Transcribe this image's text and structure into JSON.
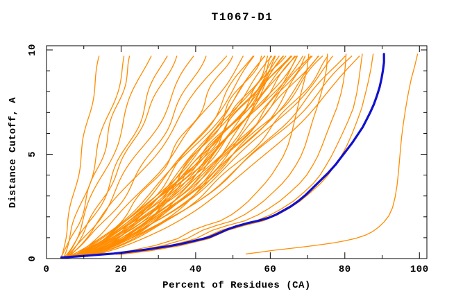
{
  "page": {
    "background": "#ffffff"
  },
  "chart_data": {
    "type": "line",
    "title": "T1067-D1",
    "xlabel": "Percent of Residues (CA)",
    "ylabel": "Distance Cutoff, A",
    "xlim": [
      0,
      102
    ],
    "ylim": [
      0,
      10.2
    ],
    "x_major_ticks": [
      0,
      20,
      40,
      60,
      80,
      100
    ],
    "x_minor_ticks": [
      10,
      30,
      50,
      70,
      90
    ],
    "y_major_ticks": [
      0,
      5,
      10
    ],
    "y_minor_ticks": [
      1,
      2,
      3,
      4,
      6,
      7,
      8,
      9
    ],
    "x_tick_labels": [
      "0",
      "20",
      "40",
      "60",
      "80",
      "100"
    ],
    "y_tick_labels": [
      "0",
      "5",
      "10"
    ],
    "grid": false,
    "legend": "none",
    "colors": {
      "ensemble": "#ff8c00",
      "highlight": "#1111cc",
      "frame": "#000000",
      "text": "#000000"
    },
    "series": [
      {
        "name": "highlighted-model",
        "color": "#1111cc",
        "width": 3.2,
        "points": [
          [
            4,
            0.05
          ],
          [
            8,
            0.1
          ],
          [
            13,
            0.17
          ],
          [
            18,
            0.24
          ],
          [
            21,
            0.3
          ],
          [
            24,
            0.37
          ],
          [
            27,
            0.44
          ],
          [
            30,
            0.52
          ],
          [
            33,
            0.6
          ],
          [
            36,
            0.7
          ],
          [
            39,
            0.82
          ],
          [
            42,
            0.95
          ],
          [
            44,
            1.05
          ],
          [
            46,
            1.2
          ],
          [
            48.5,
            1.4
          ],
          [
            51,
            1.55
          ],
          [
            54,
            1.7
          ],
          [
            57,
            1.82
          ],
          [
            59.5,
            1.95
          ],
          [
            61.5,
            2.1
          ],
          [
            63.5,
            2.3
          ],
          [
            65.5,
            2.5
          ],
          [
            67.5,
            2.75
          ],
          [
            69.5,
            3.05
          ],
          [
            71.5,
            3.4
          ],
          [
            73.5,
            3.75
          ],
          [
            75.5,
            4.1
          ],
          [
            77.5,
            4.5
          ],
          [
            79,
            4.85
          ],
          [
            80.5,
            5.2
          ],
          [
            82,
            5.55
          ],
          [
            83.5,
            5.95
          ],
          [
            84.8,
            6.3
          ],
          [
            85.8,
            6.65
          ],
          [
            86.8,
            7.0
          ],
          [
            87.8,
            7.4
          ],
          [
            88.6,
            7.8
          ],
          [
            89.3,
            8.2
          ],
          [
            89.8,
            8.6
          ],
          [
            90.2,
            9.0
          ],
          [
            90.5,
            9.4
          ],
          [
            90.5,
            9.8
          ]
        ]
      },
      {
        "name": "outlier-model",
        "color": "#ff8c00",
        "width": 1.3,
        "points": [
          [
            53.5,
            0.22
          ],
          [
            57,
            0.3
          ],
          [
            61,
            0.4
          ],
          [
            65,
            0.48
          ],
          [
            69,
            0.56
          ],
          [
            73,
            0.65
          ],
          [
            77,
            0.75
          ],
          [
            80,
            0.85
          ],
          [
            83,
            0.97
          ],
          [
            85.5,
            1.12
          ],
          [
            87.5,
            1.3
          ],
          [
            89,
            1.5
          ],
          [
            90.5,
            1.75
          ],
          [
            91.8,
            2.05
          ],
          [
            92.8,
            2.45
          ],
          [
            93.5,
            2.95
          ],
          [
            94,
            3.5
          ],
          [
            94.4,
            4.2
          ],
          [
            94.8,
            5.0
          ],
          [
            95.2,
            5.8
          ],
          [
            95.7,
            6.5
          ],
          [
            96.3,
            7.2
          ],
          [
            97,
            7.9
          ],
          [
            97.8,
            8.6
          ],
          [
            98.7,
            9.2
          ],
          [
            99.5,
            9.8
          ]
        ]
      },
      {
        "name": "companion-model",
        "color": "#ff8c00",
        "width": 1.3,
        "points": [
          [
            20,
            0.2
          ],
          [
            28,
            0.38
          ],
          [
            36,
            0.62
          ],
          [
            43.5,
            0.95
          ],
          [
            48.5,
            1.35
          ],
          [
            53,
            1.58
          ],
          [
            58,
            1.8
          ],
          [
            62,
            2.1
          ],
          [
            65,
            2.4
          ],
          [
            68,
            2.75
          ],
          [
            71,
            3.2
          ],
          [
            73.5,
            3.6
          ],
          [
            75.5,
            4.0
          ],
          [
            77.5,
            4.5
          ],
          [
            79,
            4.9
          ],
          [
            80.5,
            5.4
          ],
          [
            82,
            6.0
          ],
          [
            83.3,
            6.6
          ],
          [
            84.5,
            7.2
          ],
          [
            85.5,
            7.9
          ],
          [
            86.3,
            8.5
          ],
          [
            87,
            9.1
          ],
          [
            87.6,
            9.8
          ]
        ]
      }
    ],
    "ensemble": {
      "name": "server-model-curves",
      "color": "#ff8c00",
      "width": 1.3,
      "y_start": 0.1,
      "y_max": 9.8,
      "curve_params_format": [
        "x_start",
        "x_at_top",
        "shape_exponent",
        "wiggle_amp",
        "wiggle_freq",
        "wiggle_phase"
      ],
      "curves": [
        [
          4.0,
          14.5,
          1.0,
          0.4,
          1.8,
          0.5
        ],
        [
          4.5,
          21.5,
          0.95,
          0.7,
          1.5,
          2.1
        ],
        [
          3.5,
          23.0,
          0.8,
          0.6,
          2.0,
          4.0
        ],
        [
          5.0,
          27.5,
          0.9,
          0.9,
          1.3,
          1.0
        ],
        [
          4.2,
          32.0,
          0.78,
          0.8,
          1.7,
          3.2
        ],
        [
          5.5,
          35.0,
          0.92,
          0.5,
          2.2,
          0.2
        ],
        [
          4.8,
          40.0,
          0.85,
          1.0,
          1.4,
          5.0
        ],
        [
          3.8,
          42.5,
          0.7,
          0.7,
          1.9,
          2.6
        ],
        [
          5.2,
          48.0,
          0.9,
          1.1,
          1.2,
          1.6
        ],
        [
          4.6,
          49.5,
          0.65,
          0.8,
          2.4,
          3.8
        ],
        [
          5.8,
          53.5,
          0.8,
          0.6,
          1.6,
          0.9
        ],
        [
          4.0,
          55.0,
          0.62,
          0.9,
          1.8,
          2.3
        ],
        [
          5.0,
          56.5,
          0.7,
          0.7,
          1.4,
          4.4
        ],
        [
          4.4,
          57.5,
          0.58,
          1.1,
          2.1,
          1.2
        ],
        [
          5.6,
          58.5,
          0.66,
          0.5,
          1.7,
          3.0
        ],
        [
          4.1,
          59.5,
          0.74,
          0.8,
          1.3,
          5.5
        ],
        [
          5.3,
          60.5,
          0.6,
          1.0,
          2.3,
          0.7
        ],
        [
          4.7,
          61.0,
          0.68,
          0.6,
          1.6,
          2.9
        ],
        [
          3.9,
          61.5,
          0.56,
          1.2,
          1.9,
          4.7
        ],
        [
          5.1,
          62.0,
          0.72,
          0.7,
          1.5,
          1.8
        ],
        [
          4.3,
          62.5,
          0.63,
          0.9,
          2.0,
          3.6
        ],
        [
          5.7,
          63.0,
          0.59,
          0.5,
          1.2,
          0.3
        ],
        [
          4.9,
          63.5,
          0.67,
          1.1,
          2.2,
          5.2
        ],
        [
          4.2,
          64.0,
          0.55,
          0.8,
          1.7,
          2.0
        ],
        [
          5.4,
          64.5,
          0.71,
          0.6,
          1.4,
          4.1
        ],
        [
          4.6,
          65.0,
          0.61,
          1.0,
          1.9,
          1.4
        ],
        [
          3.7,
          65.5,
          0.69,
          0.7,
          2.4,
          3.3
        ],
        [
          5.0,
          66.0,
          0.57,
          0.9,
          1.5,
          5.7
        ],
        [
          4.4,
          66.5,
          0.73,
          0.5,
          1.8,
          0.6
        ],
        [
          5.8,
          67.0,
          0.6,
          1.1,
          1.3,
          2.5
        ],
        [
          4.8,
          67.5,
          0.66,
          0.8,
          2.1,
          4.5
        ],
        [
          4.0,
          68.0,
          0.54,
          0.6,
          1.6,
          1.1
        ],
        [
          5.2,
          69.0,
          0.7,
          1.0,
          1.2,
          3.9
        ],
        [
          4.5,
          70.0,
          0.58,
          0.7,
          2.3,
          0.1
        ],
        [
          5.6,
          71.0,
          0.64,
          0.9,
          1.7,
          2.7
        ],
        [
          4.1,
          72.0,
          0.56,
          1.1,
          1.4,
          4.9
        ],
        [
          5.0,
          73.0,
          0.68,
          0.5,
          2.0,
          1.9
        ],
        [
          4.3,
          74.0,
          0.6,
          0.8,
          1.5,
          3.5
        ],
        [
          5.5,
          75.0,
          0.65,
          1.0,
          1.8,
          0.8
        ],
        [
          4.7,
          76.5,
          0.57,
          0.7,
          2.2,
          2.2
        ],
        [
          3.8,
          78.0,
          0.63,
          0.9,
          1.3,
          4.2
        ],
        [
          5.1,
          80.0,
          0.59,
          0.6,
          1.9,
          1.5
        ],
        [
          4.5,
          82.5,
          0.62,
          0.8,
          1.6,
          3.1
        ],
        [
          5.3,
          84.5,
          0.58,
          0.5,
          1.4,
          5.0
        ]
      ],
      "companion_scaled_copies": [
        0.8,
        0.86,
        0.92,
        0.97
      ]
    }
  }
}
